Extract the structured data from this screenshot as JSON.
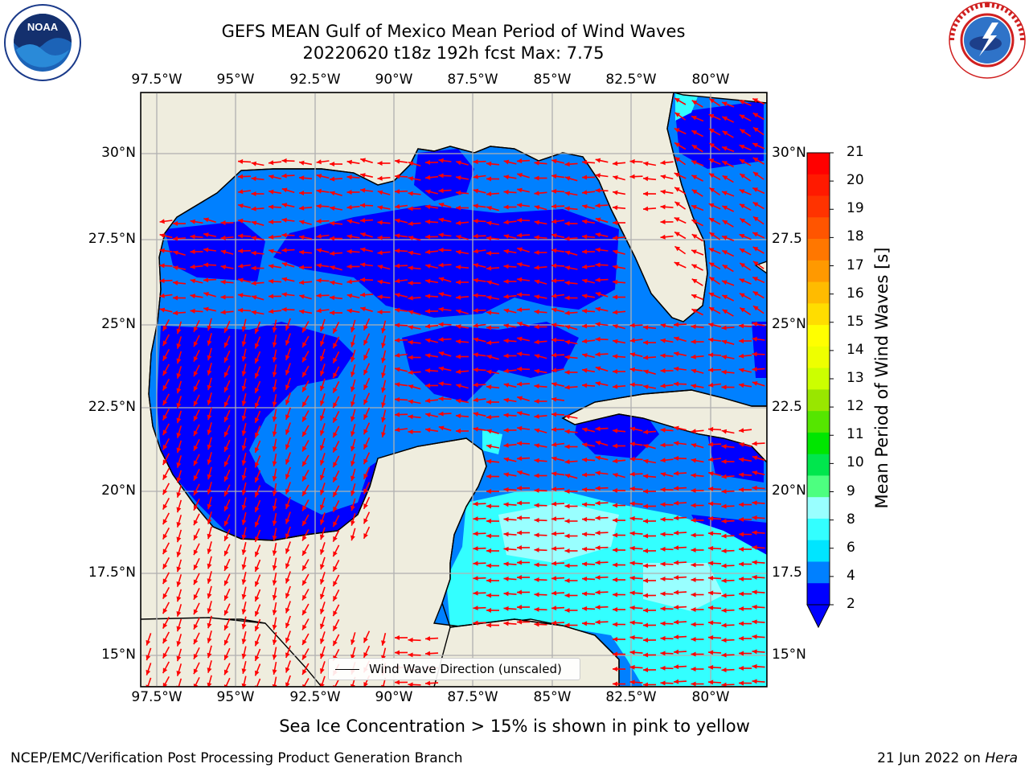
{
  "title": {
    "line1": "GEFS MEAN Gulf of Mexico Mean Period of Wind Waves",
    "line2": "20220620 t18z 192h fcst   Max: 7.75"
  },
  "axes": {
    "lon_labels": [
      "97.5°W",
      "95°W",
      "92.5°W",
      "90°W",
      "87.5°W",
      "85°W",
      "82.5°W",
      "80°W"
    ],
    "lat_labels_left": [
      "30°N",
      "27.5°N",
      "25°N",
      "22.5°N",
      "20°N",
      "17.5°N",
      "15°N"
    ],
    "lat_labels_right": [
      "30°N",
      "27.5",
      "25°N",
      "22.5",
      "20°N",
      "17.5",
      "15°N"
    ]
  },
  "legend": {
    "label": "Wind Wave Direction (unscaled)"
  },
  "colorbar": {
    "title": "Mean Period of Wind Waves [s]",
    "ticks": [
      "2",
      "4",
      "6",
      "8",
      "9",
      "10",
      "11",
      "12",
      "13",
      "14",
      "15",
      "16",
      "17",
      "18",
      "19",
      "20",
      "21"
    ],
    "colors": [
      "#0000ff",
      "#0080ff",
      "#00e5ff",
      "#33ffff",
      "#99ffff",
      "#4dff80",
      "#00e64d",
      "#00e600",
      "#55e600",
      "#99e600",
      "#ccff00",
      "#eeff00",
      "#ffff00",
      "#ffdd00",
      "#ffbb00",
      "#ff9900",
      "#ff7700",
      "#ff5500",
      "#ff3300",
      "#ff1a00",
      "#ff0000"
    ]
  },
  "note": "Sea Ice Concentration > 15% is shown in pink to yellow",
  "footer": {
    "left": "NCEP/EMC/Verification Post Processing Product Generation Branch",
    "right_date": "21 Jun 2022 on ",
    "right_host": "Hera"
  },
  "logos": {
    "left": "NOAA",
    "right": "NATIONAL WEATHER SERVICE"
  },
  "colors": {
    "land": "#efedde",
    "sea_dark": "#0000ff",
    "sea_mid": "#0080ff",
    "sea_cyan": "#33ffff",
    "sea_lightcyan": "#99ffff",
    "arrow": "#ff0000",
    "grid": "#b0b0b0"
  }
}
